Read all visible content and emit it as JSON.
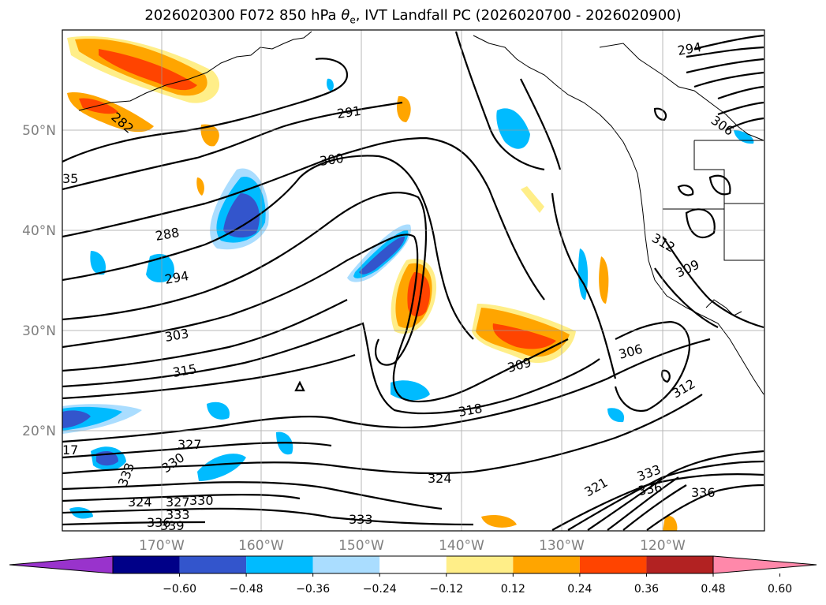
{
  "title": {
    "prefix": "2026020300 F072 850 hPa ",
    "symbol": "θ",
    "subscript": "e",
    "suffix": ", IVT Landfall PC (2026020700 - 2026020900)"
  },
  "map": {
    "latitude_labels": [
      "50°N",
      "40°N",
      "30°N",
      "20°N"
    ],
    "longitude_labels": [
      "170°W",
      "160°W",
      "150°W",
      "140°W",
      "130°W",
      "120°W"
    ],
    "contour_labels": [
      "291",
      "300",
      "288",
      "294",
      "303",
      "315",
      "327",
      "330",
      "333",
      "324",
      "327",
      "330",
      "333",
      "336",
      "339",
      "333",
      "324",
      "318",
      "309",
      "306",
      "312",
      "321",
      "333",
      "336",
      "336",
      "294",
      "282",
      "309",
      "312",
      "306",
      "35",
      "17"
    ],
    "land_color": "#ffffff",
    "contour_color": "#000000"
  },
  "colorbar": {
    "tick_labels": [
      "−0.60",
      "−0.48",
      "−0.36",
      "−0.24",
      "−0.12",
      "0.12",
      "0.24",
      "0.36",
      "0.48",
      "0.60"
    ],
    "colors": [
      "#9933cc",
      "#000088",
      "#3355cc",
      "#00bbff",
      "#aaddff",
      "#ffffff",
      "#ffee88",
      "#ffa500",
      "#ff4400",
      "#b22222",
      "#ff88aa"
    ]
  }
}
